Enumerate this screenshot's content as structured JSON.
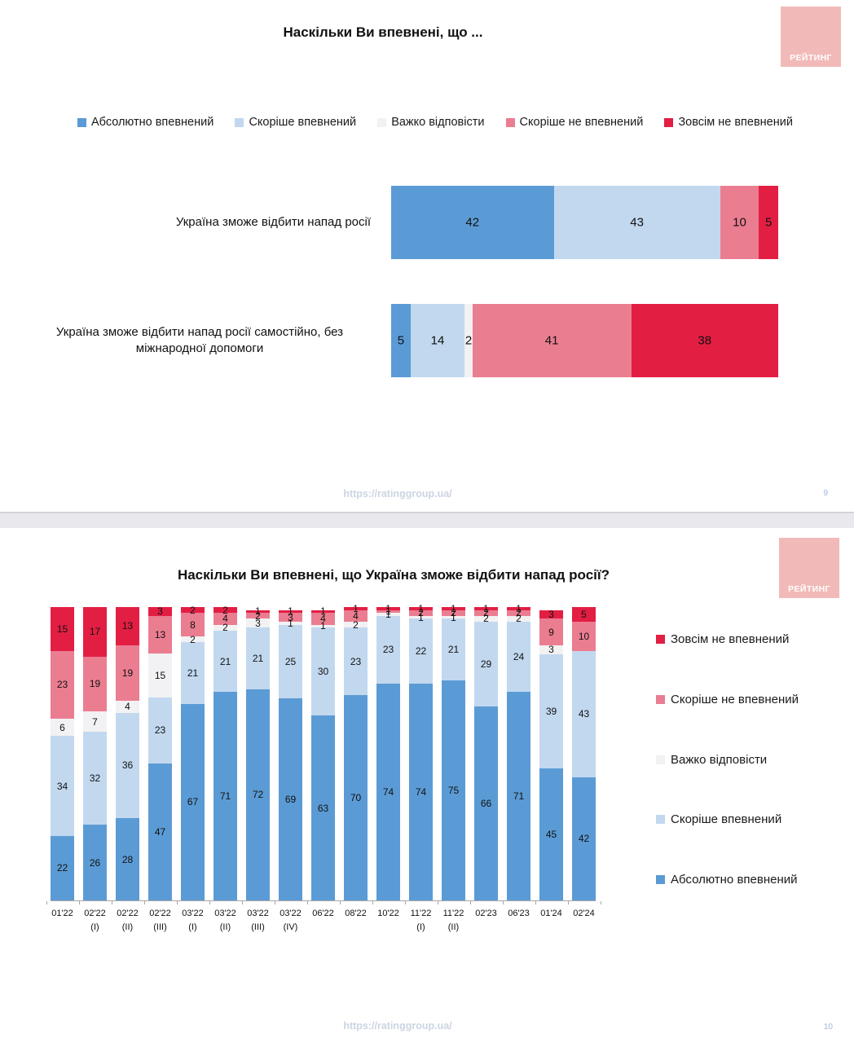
{
  "slide1": {
    "title": "Наскільки Ви впевнені, що ...",
    "logo_text": "РЕЙТИНГ",
    "footer_url": "https://ratinggroup.ua/",
    "page_number": "9"
  },
  "slide2": {
    "title": "Наскільки Ви впевнені, що Україна зможе відбити напад росії?",
    "logo_text": "РЕЙТИНГ",
    "footer_url": "https://ratinggroup.ua/",
    "page_number": "10"
  },
  "colors": {
    "absolutely_confident": "#5B9BD5",
    "rather_confident": "#C2D8EF",
    "hard_to_say": "#F2F1F3",
    "rather_not_confident": "#EB7D91",
    "not_confident_at_all": "#E31E43",
    "logo_bg": "#F1BAB8",
    "axis": "#A8A8A8",
    "footer_link": "#CCD5E2"
  },
  "chart_data": [
    {
      "type": "bar",
      "orientation": "horizontal",
      "stacked": true,
      "title": "Наскільки Ви впевнені, що ...",
      "xlim": [
        0,
        100
      ],
      "grid": false,
      "legend_position": "top",
      "categories": [
        "Україна зможе відбити напад росії",
        "Україна зможе відбити напад росії самостійно, без міжнародної допомоги"
      ],
      "series": [
        {
          "name": "Абсолютно впевнений",
          "color": "#5B9BD5",
          "values": [
            42,
            5
          ]
        },
        {
          "name": "Скоріше впевнений",
          "color": "#C2D8EF",
          "values": [
            43,
            14
          ]
        },
        {
          "name": "Важко відповісти",
          "color": "#F2F1F3",
          "values": [
            0,
            2
          ]
        },
        {
          "name": "Скоріше не впевнений",
          "color": "#EB7D91",
          "values": [
            10,
            41
          ]
        },
        {
          "name": "Зовсім не впевнений",
          "color": "#E31E43",
          "values": [
            5,
            38
          ]
        }
      ]
    },
    {
      "type": "bar",
      "orientation": "vertical",
      "stacked": true,
      "title": "Наскільки Ви впевнені, що Україна зможе відбити напад росії?",
      "ylim": [
        0,
        100
      ],
      "grid": false,
      "legend_position": "right",
      "categories": [
        "01'22",
        "02'22 (I)",
        "02'22 (II)",
        "02'22 (III)",
        "03'22 (I)",
        "03'22 (II)",
        "03'22 (III)",
        "03'22 (IV)",
        "06'22",
        "08'22",
        "10'22",
        "11'22 (I)",
        "11'22 (II)",
        "02'23",
        "06'23",
        "01'24",
        "02'24"
      ],
      "series": [
        {
          "name": "Абсолютно впевнений",
          "color": "#5B9BD5",
          "values": [
            22,
            26,
            28,
            47,
            67,
            71,
            72,
            69,
            63,
            70,
            74,
            74,
            75,
            66,
            71,
            45,
            42
          ]
        },
        {
          "name": "Скоріше впевнений",
          "color": "#C2D8EF",
          "values": [
            34,
            32,
            36,
            23,
            21,
            21,
            21,
            25,
            30,
            23,
            23,
            22,
            21,
            29,
            24,
            39,
            43
          ]
        },
        {
          "name": "Важко відповісти",
          "color": "#F2F1F3",
          "values": [
            6,
            7,
            4,
            15,
            2,
            2,
            3,
            1,
            1,
            2,
            1,
            1,
            1,
            2,
            2,
            3,
            0
          ]
        },
        {
          "name": "Скоріше не впевнений",
          "color": "#EB7D91",
          "values": [
            23,
            19,
            19,
            13,
            8,
            4,
            2,
            3,
            4,
            4,
            1,
            2,
            2,
            2,
            2,
            9,
            10
          ]
        },
        {
          "name": "Зовсім не впевнений",
          "color": "#E31E43",
          "values": [
            15,
            17,
            13,
            3,
            2,
            2,
            1,
            1,
            1,
            1,
            1,
            1,
            1,
            1,
            1,
            3,
            5
          ]
        }
      ]
    }
  ]
}
